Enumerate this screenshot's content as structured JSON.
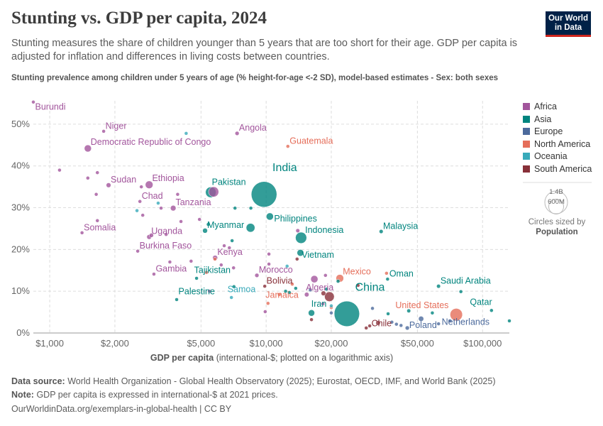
{
  "header": {
    "title": "Stunting vs. GDP per capita, 2024",
    "subtitle": "Stunting measures the share of children younger than 5 years that are too short for their age. GDP per capita is adjusted for inflation and differences in living costs between countries.",
    "logo": "Our World in Data"
  },
  "legend": {
    "regions": [
      {
        "name": "Africa",
        "color": "#a2559c"
      },
      {
        "name": "Asia",
        "color": "#00847e"
      },
      {
        "name": "Europe",
        "color": "#4c6a9c"
      },
      {
        "name": "North America",
        "color": "#e56e5a"
      },
      {
        "name": "Oceania",
        "color": "#38aaba"
      },
      {
        "name": "South America",
        "color": "#883039"
      }
    ],
    "size_big": "1.4B",
    "size_small": "600M",
    "size_caption": "Circles sized by",
    "size_var": "Population"
  },
  "footer": {
    "source_label": "Data source:",
    "source": "World Health Organization - Global Health Observatory (2025); Eurostat, OECD, IMF, and World Bank (2025)",
    "note_label": "Note:",
    "note": "GDP per capita is expressed in international-$ at 2021 prices.",
    "credit": "OurWorldinData.org/exemplars-in-global-health | CC BY"
  },
  "chart_data": {
    "type": "scatter",
    "title": "Stunting vs. GDP per capita, 2024",
    "ylabel": "Stunting prevalence among children under 5 years of age (% height-for-age <-2 SD), model-based estimates - Sex: both sexes",
    "xlabel_bold": "GDP per capita",
    "xlabel_rest": "(international-$; plotted on a logarithmic axis)",
    "x_scale": "log",
    "xlim": [
      840,
      133000
    ],
    "ylim": [
      0,
      55.6
    ],
    "x_ticks": [
      {
        "v": 1000,
        "l": "$1,000"
      },
      {
        "v": 2000,
        "l": "$2,000"
      },
      {
        "v": 5000,
        "l": "$5,000"
      },
      {
        "v": 10000,
        "l": "$10,000"
      },
      {
        "v": 20000,
        "l": "$20,000"
      },
      {
        "v": 50000,
        "l": "$50,000"
      },
      {
        "v": 100000,
        "l": "$100,000"
      }
    ],
    "y_ticks": [
      {
        "v": 0,
        "l": "0%"
      },
      {
        "v": 10,
        "l": "10%"
      },
      {
        "v": 20,
        "l": "20%"
      },
      {
        "v": 30,
        "l": "30%"
      },
      {
        "v": 40,
        "l": "40%"
      },
      {
        "v": 50,
        "l": "50%"
      }
    ],
    "grid": true,
    "legend": "right",
    "point_fields": [
      "label",
      "region",
      "gdp_per_capita",
      "stunting_pct",
      "population_millions"
    ],
    "points": [
      [
        "Burundi",
        "Africa",
        840,
        55.3,
        14
      ],
      [
        "Niger",
        "Africa",
        1775,
        48.3,
        27
      ],
      [
        "Democratic Republic of Congo",
        "Africa",
        1500,
        44.2,
        110
      ],
      [
        "Sudan",
        "Africa",
        1870,
        35.4,
        50
      ],
      [
        "Ethiopia",
        "Africa",
        2880,
        35.5,
        130
      ],
      [
        "Chad",
        "Africa",
        2610,
        31.5,
        19
      ],
      [
        "Tanzania",
        "Africa",
        3720,
        29.9,
        68
      ],
      [
        "Somalia",
        "Africa",
        1410,
        24.0,
        19
      ],
      [
        "Uganda",
        "Africa",
        2880,
        23.0,
        50
      ],
      [
        "Burkina Faso",
        "Africa",
        2550,
        19.6,
        23
      ],
      [
        "Gambia",
        "Africa",
        3030,
        14.1,
        3
      ],
      [
        "Angola",
        "Africa",
        7340,
        47.8,
        37
      ],
      [
        "Kenya",
        "Africa",
        5810,
        18.0,
        56
      ],
      [
        "Morocco",
        "Africa",
        9060,
        13.8,
        38
      ],
      [
        "Algeria",
        "Africa",
        15400,
        9.2,
        46
      ],
      [
        "Guatemala",
        "North America",
        12600,
        44.7,
        18
      ],
      [
        "Mexico",
        "North America",
        21900,
        13.1,
        130
      ],
      [
        "Jamaica",
        "North America",
        10200,
        7.1,
        3
      ],
      [
        "United States",
        "North America",
        75600,
        4.4,
        340
      ],
      [
        "Pakistan",
        "Asia",
        5550,
        33.7,
        250
      ],
      [
        "India",
        "Asia",
        9780,
        33.2,
        1450
      ],
      [
        "Philippines",
        "Asia",
        10400,
        27.9,
        115
      ],
      [
        "Myanmar",
        "Asia",
        5220,
        24.5,
        54
      ],
      [
        "Indonesia",
        "Asia",
        14500,
        22.8,
        280
      ],
      [
        "Vietnam",
        "Asia",
        14400,
        19.2,
        100
      ],
      [
        "Malaysia",
        "Asia",
        34000,
        24.3,
        35
      ],
      [
        "Tajikistan",
        "Asia",
        4770,
        13.1,
        10
      ],
      [
        "Palestine",
        "Asia",
        3860,
        8.0,
        5
      ],
      [
        "Oman",
        "Asia",
        36400,
        12.9,
        5
      ],
      [
        "Saudi Arabia",
        "Asia",
        62600,
        11.2,
        34
      ],
      [
        "China",
        "Asia",
        23600,
        4.6,
        1420
      ],
      [
        "Iran",
        "Asia",
        16200,
        4.8,
        90
      ],
      [
        "Qatar",
        "Asia",
        110000,
        5.4,
        3
      ],
      [
        "Bolivia",
        "South America",
        9850,
        11.2,
        12
      ],
      [
        "Chile",
        "South America",
        30100,
        1.7,
        20
      ],
      [
        "Samoa",
        "Oceania",
        6910,
        8.5,
        1
      ],
      [
        "Poland",
        "Europe",
        44900,
        1.2,
        38
      ],
      [
        "Netherlands",
        "Europe",
        62600,
        2.2,
        18
      ],
      [
        "",
        "Africa",
        5720,
        33.8,
        230
      ],
      [
        "",
        "Africa",
        1110,
        39.0,
        6
      ],
      [
        "",
        "Africa",
        1500,
        37.1,
        13
      ],
      [
        "",
        "Africa",
        1660,
        38.4,
        8
      ],
      [
        "",
        "Africa",
        1640,
        33.2,
        6
      ],
      [
        "",
        "Africa",
        1660,
        26.9,
        6
      ],
      [
        "",
        "Africa",
        2650,
        35.0,
        6
      ],
      [
        "",
        "Africa",
        2690,
        28.2,
        6
      ],
      [
        "",
        "Africa",
        3270,
        29.9,
        6
      ],
      [
        "",
        "Africa",
        3900,
        33.2,
        5
      ],
      [
        "",
        "Africa",
        4040,
        26.7,
        5
      ],
      [
        "",
        "Africa",
        4920,
        27.2,
        18
      ],
      [
        "",
        "Africa",
        3450,
        23.6,
        6
      ],
      [
        "",
        "Africa",
        3590,
        17.0,
        5
      ],
      [
        "",
        "Africa",
        4500,
        17.2,
        6
      ],
      [
        "",
        "Africa",
        6400,
        20.9,
        6
      ],
      [
        "",
        "Africa",
        6760,
        20.4,
        10
      ],
      [
        "",
        "Africa",
        6200,
        16.3,
        5
      ],
      [
        "",
        "Africa",
        7070,
        15.6,
        28
      ],
      [
        "",
        "Africa",
        10300,
        18.9,
        6
      ],
      [
        "",
        "Africa",
        10300,
        16.5,
        5
      ],
      [
        "",
        "Africa",
        5470,
        10.0,
        3
      ],
      [
        "",
        "Africa",
        9900,
        5.1,
        4
      ],
      [
        "",
        "Africa",
        18800,
        13.8,
        3
      ],
      [
        "",
        "Africa",
        16700,
        12.9,
        115
      ],
      [
        "",
        "Africa",
        2950,
        23.4,
        40
      ],
      [
        "",
        "Africa",
        14000,
        24.5,
        35
      ],
      [
        "",
        "Africa",
        18300,
        7.0,
        6
      ],
      [
        "",
        "Asia",
        5400,
        26.0,
        17
      ],
      [
        "",
        "Asia",
        6960,
        22.1,
        4
      ],
      [
        "",
        "Asia",
        7180,
        29.9,
        3
      ],
      [
        "",
        "Asia",
        8470,
        25.2,
        170
      ],
      [
        "",
        "Asia",
        8500,
        29.9,
        3
      ],
      [
        "",
        "Asia",
        7100,
        11.1,
        3
      ],
      [
        "",
        "Asia",
        12300,
        10.0,
        7
      ],
      [
        "",
        "Asia",
        12800,
        9.7,
        20
      ],
      [
        "",
        "Asia",
        13700,
        10.7,
        4
      ],
      [
        "",
        "Asia",
        21500,
        12.4,
        30
      ],
      [
        "",
        "Asia",
        36600,
        4.6,
        12
      ],
      [
        "",
        "Asia",
        45600,
        5.3,
        33
      ],
      [
        "",
        "Asia",
        58600,
        4.8,
        5
      ],
      [
        "",
        "Asia",
        79400,
        9.9,
        2
      ],
      [
        "",
        "Asia",
        133000,
        2.9,
        1
      ],
      [
        "",
        "Asia",
        19000,
        10.5,
        10
      ],
      [
        "",
        "Europe",
        16000,
        10.3,
        4
      ],
      [
        "",
        "Europe",
        20000,
        4.8,
        5
      ],
      [
        "",
        "Europe",
        38100,
        2.6,
        10
      ],
      [
        "",
        "Europe",
        40000,
        2.1,
        5
      ],
      [
        "",
        "Europe",
        42000,
        1.8,
        8
      ],
      [
        "",
        "Europe",
        52000,
        3.4,
        60
      ],
      [
        "",
        "Europe",
        70600,
        2.9,
        9
      ],
      [
        "",
        "Europe",
        31000,
        5.9,
        10
      ],
      [
        "",
        "South America",
        18400,
        9.5,
        50
      ],
      [
        "",
        "South America",
        19600,
        8.7,
        210
      ],
      [
        "",
        "South America",
        26600,
        11.4,
        12
      ],
      [
        "",
        "South America",
        32900,
        2.4,
        45
      ],
      [
        "",
        "South America",
        13900,
        17.7,
        3
      ],
      [
        "",
        "South America",
        16200,
        3.2,
        3
      ],
      [
        "",
        "South America",
        29000,
        1.2,
        3
      ],
      [
        "",
        "North America",
        5300,
        14.5,
        2
      ],
      [
        "",
        "North America",
        13200,
        11.7,
        4
      ],
      [
        "",
        "North America",
        11500,
        9.2,
        11
      ],
      [
        "",
        "North America",
        20000,
        6.1,
        5
      ],
      [
        "",
        "North America",
        36000,
        14.3,
        3
      ],
      [
        "",
        "North America",
        5800,
        17.7,
        3
      ],
      [
        "",
        "Oceania",
        4270,
        47.8,
        2
      ],
      [
        "",
        "Oceania",
        2530,
        29.3,
        1
      ],
      [
        "",
        "Oceania",
        3170,
        31.1,
        10
      ],
      [
        "",
        "Oceania",
        12500,
        16.0,
        1
      ],
      [
        "",
        "Oceania",
        20000,
        6.5,
        1
      ]
    ]
  }
}
